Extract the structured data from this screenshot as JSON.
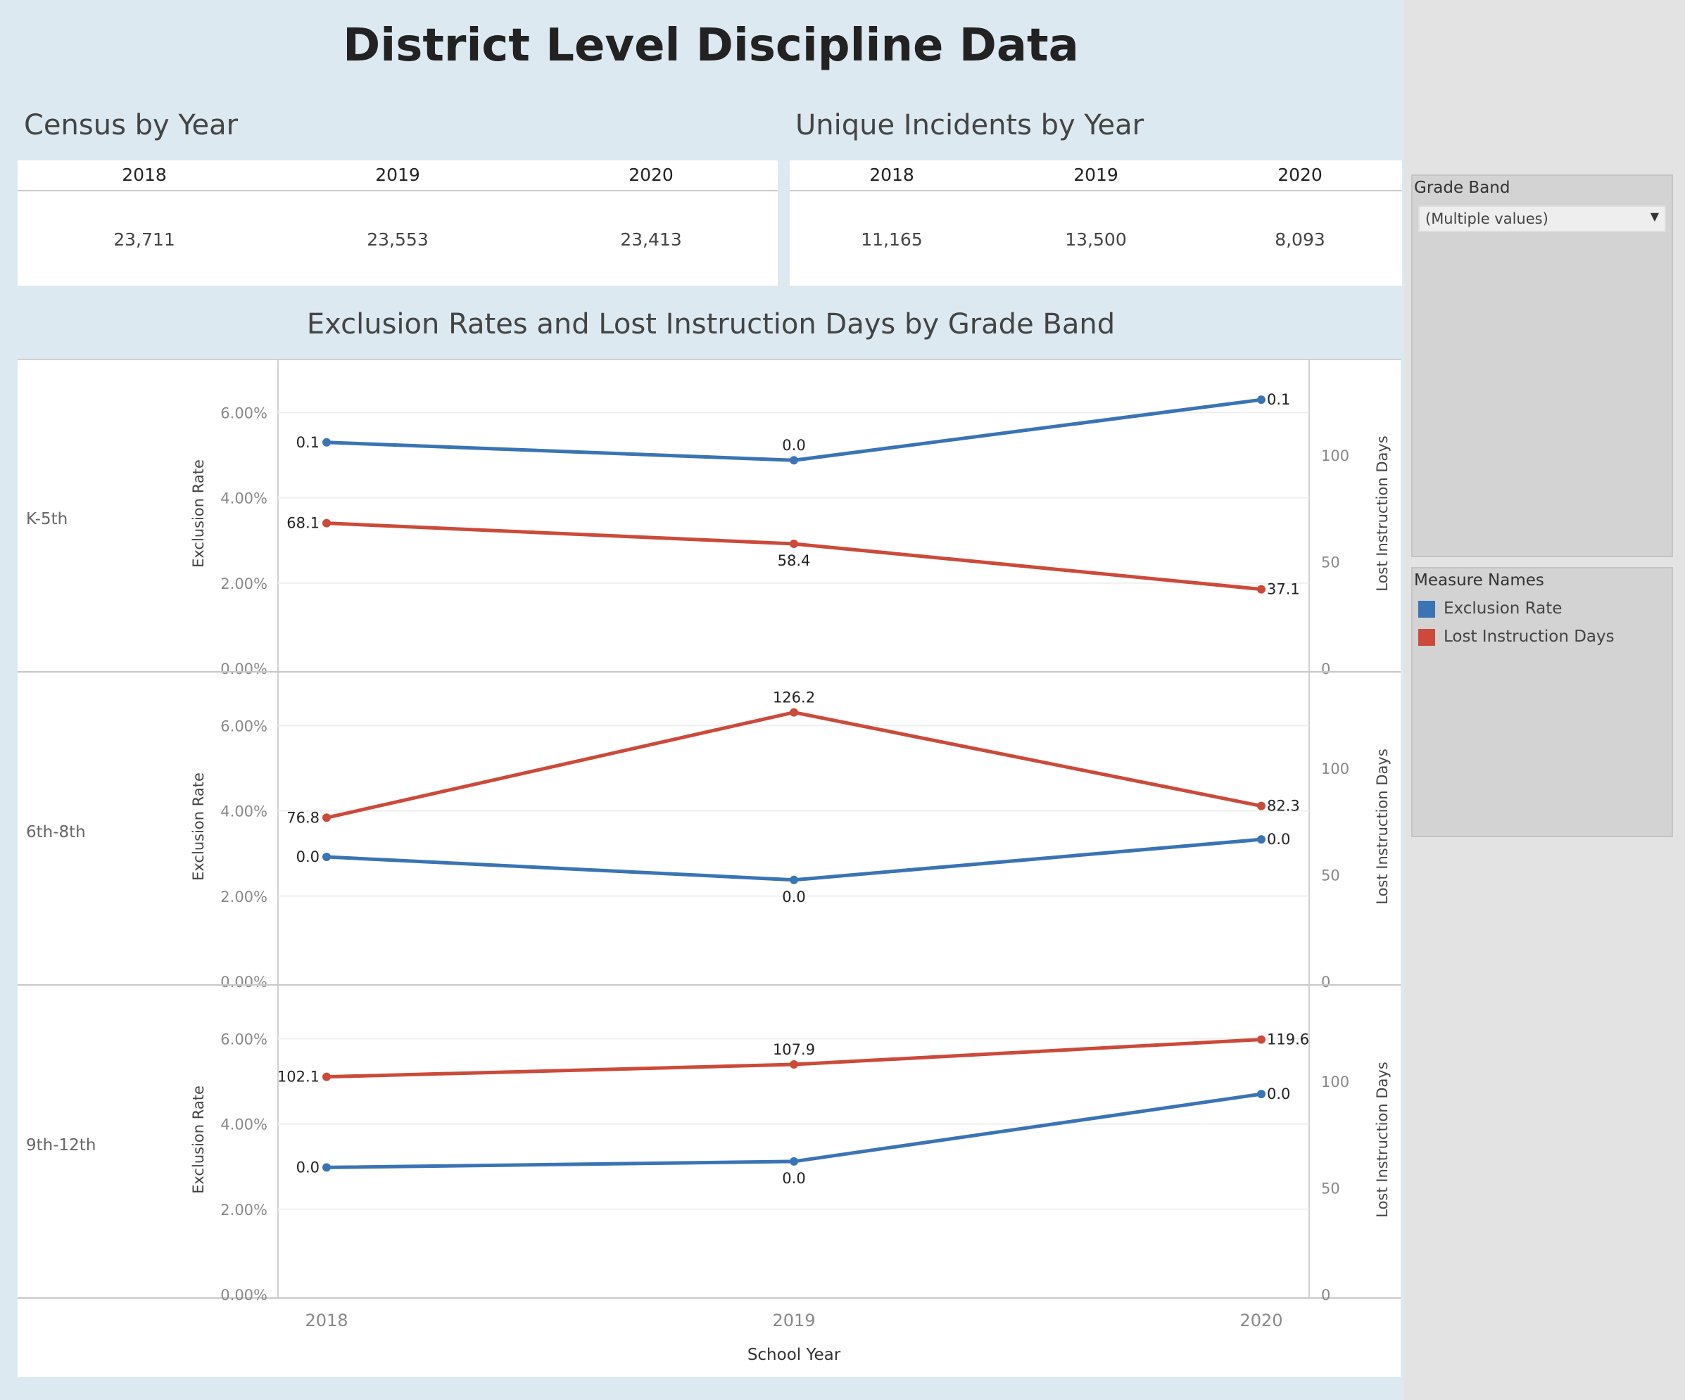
{
  "dashboard": {
    "title": "District Level Discipline Data",
    "census": {
      "title": "Census by Year",
      "headers": [
        "2018",
        "2019",
        "2020"
      ],
      "values": [
        "23,711",
        "23,553",
        "23,413"
      ]
    },
    "incidents": {
      "title": "Unique Incidents by Year",
      "headers": [
        "2018",
        "2019",
        "2020"
      ],
      "values": [
        "11,165",
        "13,500",
        "8,093"
      ]
    },
    "chart_title": "Exclusion Rates and Lost Instruction Days by Grade Band"
  },
  "filter": {
    "title": "Grade Band",
    "selected": "(Multiple values)"
  },
  "legend": {
    "title": "Measure Names",
    "items": [
      {
        "label": "Exclusion Rate",
        "color": "#3a74b4"
      },
      {
        "label": "Lost Instruction Days",
        "color": "#cc4a3a"
      }
    ]
  },
  "chart_data": {
    "type": "line",
    "title": "Exclusion Rates and Lost Instruction Days by Grade Band",
    "xlabel": "School Year",
    "x": [
      "2018",
      "2019",
      "2020"
    ],
    "y_left_label": "Exclusion Rate",
    "y_left_ticks": [
      "6.00%",
      "4.00%",
      "2.00%",
      "0.00%"
    ],
    "y_left_lim": [
      0,
      6.6
    ],
    "y_right_label": "Lost Instruction Days",
    "y_right_ticks": [
      "100",
      "50",
      "0"
    ],
    "y_right_lim": [
      0,
      132
    ],
    "grid": true,
    "panels": [
      {
        "name": "K-5th",
        "series": [
          {
            "name": "Exclusion Rate",
            "axis": "left",
            "color": "#3a74b4",
            "values": [
              5.3,
              4.88,
              6.3
            ],
            "labels": [
              "0.1",
              "0.0",
              "0.1"
            ]
          },
          {
            "name": "Lost Instruction Days",
            "axis": "right",
            "color": "#cc4a3a",
            "values": [
              68.1,
              58.4,
              37.1
            ],
            "labels": [
              "68.1",
              "58.4",
              "37.1"
            ]
          }
        ]
      },
      {
        "name": "6th-8th",
        "series": [
          {
            "name": "Exclusion Rate",
            "axis": "left",
            "color": "#3a74b4",
            "values": [
              2.92,
              2.38,
              3.33
            ],
            "labels": [
              "0.0",
              "0.0",
              "0.0"
            ]
          },
          {
            "name": "Lost Instruction Days",
            "axis": "right",
            "color": "#cc4a3a",
            "values": [
              76.8,
              126.2,
              82.3
            ],
            "labels": [
              "76.8",
              "126.2",
              "82.3"
            ]
          }
        ]
      },
      {
        "name": "9th-12th",
        "series": [
          {
            "name": "Exclusion Rate",
            "axis": "left",
            "color": "#3a74b4",
            "values": [
              2.98,
              3.12,
              4.7
            ],
            "labels": [
              "0.0",
              "0.0",
              "0.0"
            ]
          },
          {
            "name": "Lost Instruction Days",
            "axis": "right",
            "color": "#cc4a3a",
            "values": [
              102.1,
              107.9,
              119.6
            ],
            "labels": [
              "102.1",
              "107.9",
              "119.6"
            ]
          }
        ]
      }
    ]
  }
}
